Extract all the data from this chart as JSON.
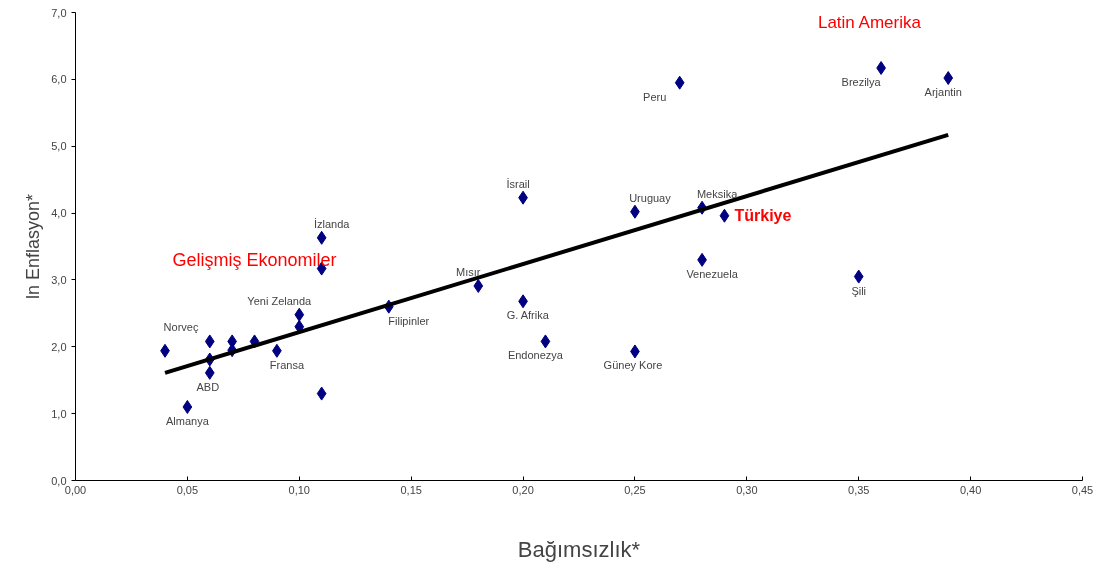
{
  "chart_data": {
    "type": "scatter",
    "xlabel": "Bağımsızlık*",
    "ylabel": "ln Enflasyon*",
    "marker": "diamond",
    "grid": false,
    "xlim": [
      0,
      0.45
    ],
    "ylim": [
      0,
      7
    ],
    "xticks": [
      {
        "value": 0,
        "label": "0,00"
      },
      {
        "value": 0.05,
        "label": "0,05"
      },
      {
        "value": 0.1,
        "label": "0,10"
      },
      {
        "value": 0.15,
        "label": "0,15"
      },
      {
        "value": 0.2,
        "label": "0,20"
      },
      {
        "value": 0.25,
        "label": "0,25"
      },
      {
        "value": 0.3,
        "label": "0,30"
      },
      {
        "value": 0.35,
        "label": "0,35"
      },
      {
        "value": 0.4,
        "label": "0,40"
      },
      {
        "value": 0.45,
        "label": "0,45"
      }
    ],
    "yticks": [
      {
        "value": 0,
        "label": "0,0"
      },
      {
        "value": 1,
        "label": "1,0"
      },
      {
        "value": 2,
        "label": "2,0"
      },
      {
        "value": 3,
        "label": "3,0"
      },
      {
        "value": 4,
        "label": "4,0"
      },
      {
        "value": 5,
        "label": "5,0"
      },
      {
        "value": 6,
        "label": "6,0"
      },
      {
        "value": 7,
        "label": "7,0"
      }
    ],
    "series": [
      {
        "color": "#000080",
        "x": [
          0.05,
          0.04,
          0.06,
          0.06,
          0.06,
          0.07,
          0.07,
          0.08,
          0.09,
          0.1,
          0.1,
          0.11,
          0.11,
          0.11,
          0.14,
          0.18,
          0.2,
          0.2,
          0.21,
          0.25,
          0.25,
          0.27,
          0.28,
          0.28,
          0.29,
          0.35,
          0.36,
          0.39
        ],
        "values": [
          1.1,
          1.94,
          1.61,
          1.81,
          2.08,
          2.08,
          1.95,
          2.08,
          1.94,
          2.48,
          2.3,
          3.63,
          3.17,
          1.3,
          2.6,
          2.91,
          4.23,
          2.68,
          2.08,
          1.93,
          4.02,
          5.95,
          4.08,
          3.3,
          3.96,
          3.05,
          6.17,
          6.02
        ],
        "value_labels": [
          "Almanya",
          "Norveç",
          "ABD",
          null,
          null,
          null,
          null,
          null,
          "Fransa",
          "Yeni Zelanda",
          null,
          "İzlanda",
          null,
          null,
          "Filipinler",
          "Mısır",
          "İsrail",
          "G. Afrika",
          "Endonezya",
          "Güney Kore",
          "Uruguay",
          "Peru",
          "Meksika",
          "Venezuela",
          null,
          "Şili",
          "Brezilya",
          "Arjantin"
        ]
      },
      {
        "type": "line",
        "marker": "none",
        "color": "#000000",
        "x": [
          0.04,
          0.39
        ],
        "values": [
          1.61,
          5.17
        ]
      }
    ],
    "annotations": [
      "Gelişmiş Ekonomiler",
      "Latin Amerika",
      {
        "text": "Türkiye",
        "x": 0.29,
        "y": 3.96
      }
    ]
  }
}
